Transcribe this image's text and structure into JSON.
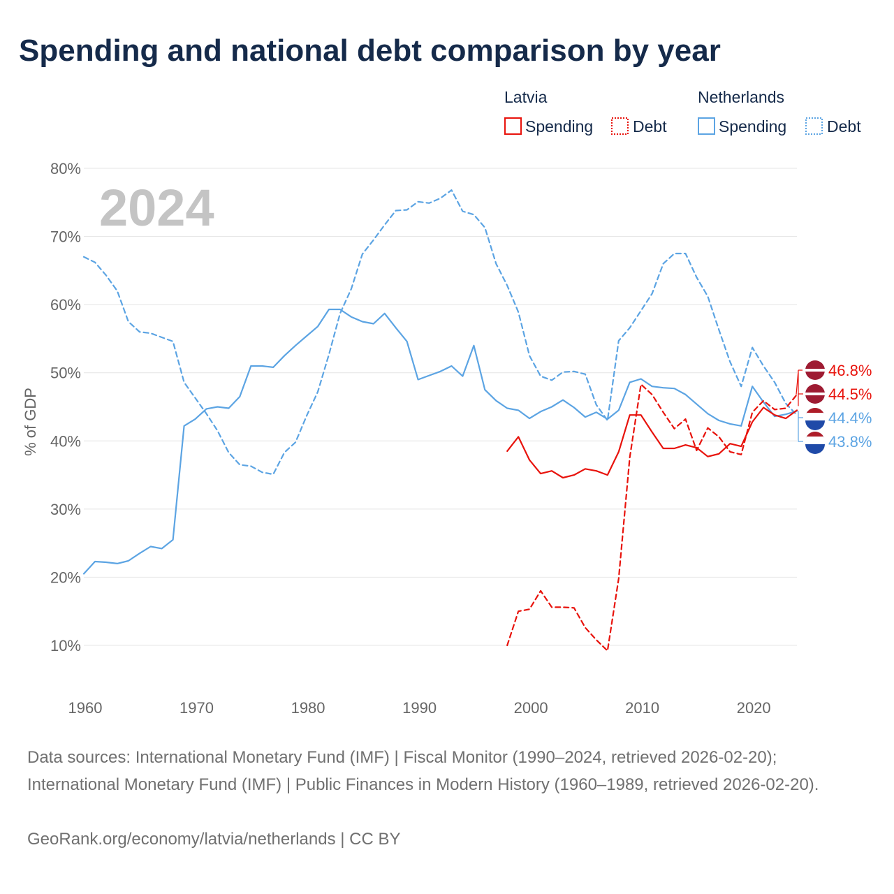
{
  "title": "Spending and national debt comparison by year",
  "chart_data": {
    "type": "line",
    "year_label": "2024",
    "ylabel": "% of GDP",
    "xlim": [
      1960,
      2024
    ],
    "ylim": [
      4,
      82
    ],
    "x_ticks": [
      1960,
      1970,
      1980,
      1990,
      2000,
      2010,
      2020
    ],
    "y_ticks": [
      10,
      20,
      30,
      40,
      50,
      60,
      70,
      80
    ],
    "legend": {
      "placement": "top-right",
      "groups": [
        {
          "country": "Latvia",
          "color": "#e8130c",
          "items": [
            "Spending",
            "Debt"
          ]
        },
        {
          "country": "Netherlands",
          "color": "#5ca4e3",
          "items": [
            "Spending",
            "Debt"
          ]
        }
      ]
    },
    "series": [
      {
        "name": "Netherlands Spending",
        "country": "Netherlands",
        "measure": "Spending",
        "color": "#5ca4e3",
        "dash": false,
        "x": [
          1960,
          1961,
          1962,
          1963,
          1964,
          1965,
          1966,
          1967,
          1968,
          1969,
          1970,
          1971,
          1972,
          1973,
          1974,
          1975,
          1976,
          1977,
          1978,
          1979,
          1980,
          1981,
          1982,
          1983,
          1984,
          1985,
          1986,
          1987,
          1988,
          1989,
          1990,
          1991,
          1992,
          1993,
          1994,
          1995,
          1996,
          1997,
          1998,
          1999,
          2000,
          2001,
          2002,
          2003,
          2004,
          2005,
          2006,
          2007,
          2008,
          2009,
          2010,
          2011,
          2012,
          2013,
          2014,
          2015,
          2016,
          2017,
          2018,
          2019,
          2020,
          2021,
          2022,
          2023,
          2024
        ],
        "values": [
          20.5,
          22.3,
          22.2,
          22.0,
          22.4,
          23.5,
          24.5,
          24.2,
          25.5,
          42.2,
          43.2,
          44.7,
          45.0,
          44.8,
          46.5,
          51.0,
          51.0,
          50.8,
          52.5,
          54.0,
          55.4,
          56.8,
          59.3,
          59.3,
          58.2,
          57.5,
          57.2,
          58.7,
          56.6,
          54.6,
          49.0,
          49.6,
          50.2,
          51.0,
          49.5,
          54.0,
          47.5,
          45.9,
          44.8,
          44.5,
          43.3,
          44.3,
          45.0,
          46.0,
          44.9,
          43.5,
          44.2,
          43.2,
          44.5,
          48.6,
          49.1,
          48.0,
          47.8,
          47.7,
          46.8,
          45.4,
          44.0,
          43.0,
          42.5,
          42.2,
          48.0,
          45.7,
          43.6,
          43.9,
          44.4
        ]
      },
      {
        "name": "Netherlands Debt",
        "country": "Netherlands",
        "measure": "Debt",
        "color": "#5ca4e3",
        "dash": true,
        "x": [
          1960,
          1961,
          1962,
          1963,
          1964,
          1965,
          1966,
          1967,
          1968,
          1969,
          1970,
          1971,
          1972,
          1973,
          1974,
          1975,
          1976,
          1977,
          1978,
          1979,
          1980,
          1981,
          1982,
          1983,
          1984,
          1985,
          1986,
          1987,
          1988,
          1989,
          1990,
          1991,
          1992,
          1993,
          1994,
          1995,
          1996,
          1997,
          1998,
          1999,
          2000,
          2001,
          2002,
          2003,
          2004,
          2005,
          2006,
          2007,
          2008,
          2009,
          2010,
          2011,
          2012,
          2013,
          2014,
          2015,
          2016,
          2017,
          2018,
          2019,
          2020,
          2021,
          2022,
          2023,
          2024
        ],
        "values": [
          67.0,
          66.2,
          64.3,
          62.0,
          57.5,
          56.0,
          55.8,
          55.2,
          54.6,
          48.6,
          46.3,
          44.0,
          41.5,
          38.3,
          36.5,
          36.3,
          35.4,
          35.1,
          38.3,
          39.8,
          43.7,
          47.2,
          52.7,
          58.7,
          62.3,
          67.4,
          69.5,
          71.7,
          73.8,
          73.9,
          75.1,
          74.9,
          75.6,
          76.8,
          73.7,
          73.2,
          71.3,
          66.0,
          62.8,
          58.9,
          52.5,
          49.5,
          48.9,
          50.1,
          50.2,
          49.8,
          45.3,
          43.0,
          54.7,
          56.6,
          59.1,
          61.6,
          66.0,
          67.5,
          67.5,
          64.0,
          61.2,
          56.3,
          51.6,
          48.0,
          53.7,
          51.0,
          48.6,
          45.5,
          43.8
        ]
      },
      {
        "name": "Latvia Spending",
        "country": "Latvia",
        "measure": "Spending",
        "color": "#e8130c",
        "dash": false,
        "x": [
          1998,
          1999,
          2000,
          2001,
          2002,
          2003,
          2004,
          2005,
          2006,
          2007,
          2008,
          2009,
          2010,
          2011,
          2012,
          2013,
          2014,
          2015,
          2016,
          2017,
          2018,
          2019,
          2020,
          2021,
          2022,
          2023,
          2024
        ],
        "values": [
          38.5,
          40.6,
          37.2,
          35.2,
          35.6,
          34.6,
          35.0,
          35.9,
          35.6,
          35.0,
          38.4,
          43.8,
          43.8,
          41.3,
          38.9,
          38.9,
          39.4,
          39.0,
          37.7,
          38.1,
          39.6,
          39.2,
          42.8,
          44.9,
          43.8,
          43.3,
          44.5
        ]
      },
      {
        "name": "Latvia Debt",
        "country": "Latvia",
        "measure": "Debt",
        "color": "#e8130c",
        "dash": true,
        "x": [
          1998,
          1999,
          2000,
          2001,
          2002,
          2003,
          2004,
          2005,
          2006,
          2007,
          2008,
          2009,
          2010,
          2011,
          2012,
          2013,
          2014,
          2015,
          2016,
          2017,
          2018,
          2019,
          2020,
          2021,
          2022,
          2023,
          2024
        ],
        "values": [
          10.0,
          15.0,
          15.3,
          18.0,
          15.6,
          15.6,
          15.5,
          12.6,
          10.8,
          9.2,
          19.8,
          37.6,
          48.3,
          46.8,
          44.2,
          41.8,
          43.2,
          38.6,
          41.9,
          40.6,
          38.4,
          38.0,
          44.2,
          45.9,
          44.6,
          44.8,
          46.8
        ]
      }
    ],
    "end_labels": [
      {
        "text": "46.8%",
        "value": 46.8,
        "color": "#e8130c",
        "country": "Latvia"
      },
      {
        "text": "44.5%",
        "value": 44.5,
        "color": "#e8130c",
        "country": "Latvia"
      },
      {
        "text": "44.4%",
        "value": 44.4,
        "color": "#5ca4e3",
        "country": "Netherlands"
      },
      {
        "text": "43.8%",
        "value": 43.8,
        "color": "#5ca4e3",
        "country": "Netherlands"
      }
    ]
  },
  "footer": {
    "sources": "Data sources: International Monetary Fund (IMF) | Fiscal Monitor (1990–2024, retrieved 2026-02-20); International Monetary Fund (IMF) | Public Finances in Modern History (1960–1989, retrieved 2026-02-20).",
    "credit": "GeoRank.org/economy/latvia/netherlands | CC BY"
  }
}
